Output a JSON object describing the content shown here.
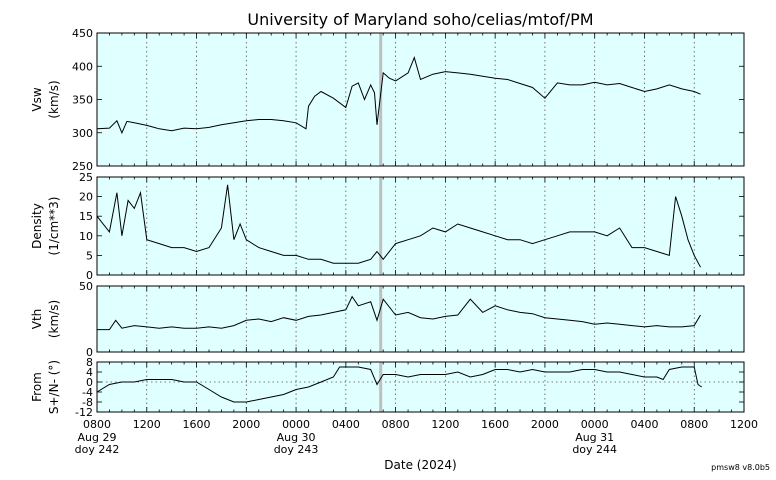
{
  "chart_data": {
    "type": "line",
    "title": "University of Maryland  soho/celias/mtof/PM",
    "xlabel": "Date (2024)",
    "version": "pmsw8 v8.0b5",
    "background_color": "#e0ffff",
    "line_color": "#000000",
    "marker_color": "#bfbfbf",
    "grid": true,
    "x_range_hours": [
      0,
      52
    ],
    "x_ticks": [
      {
        "h": 0,
        "label": "0800"
      },
      {
        "h": 4,
        "label": "1200"
      },
      {
        "h": 8,
        "label": "1600"
      },
      {
        "h": 12,
        "label": "2000"
      },
      {
        "h": 16,
        "label": "0000"
      },
      {
        "h": 20,
        "label": "0400"
      },
      {
        "h": 24,
        "label": "0800"
      },
      {
        "h": 28,
        "label": "1200"
      },
      {
        "h": 32,
        "label": "1600"
      },
      {
        "h": 36,
        "label": "2000"
      },
      {
        "h": 40,
        "label": "0000"
      },
      {
        "h": 44,
        "label": "0400"
      },
      {
        "h": 48,
        "label": "0800"
      },
      {
        "h": 52,
        "label": "1200"
      }
    ],
    "day_labels": [
      {
        "h": 0,
        "date": "Aug 29",
        "doy": "doy 242"
      },
      {
        "h": 16,
        "date": "Aug 30",
        "doy": "doy 243"
      },
      {
        "h": 40,
        "date": "Aug 31",
        "doy": "doy 244"
      }
    ],
    "marker_hour": 22.8,
    "panels": [
      {
        "ylabel_line1": "Vsw",
        "ylabel_line2": "(km/s)",
        "ylim": [
          250,
          450
        ],
        "yticks": [
          250,
          300,
          350,
          400,
          450
        ],
        "x": [
          0,
          1,
          1.6,
          2,
          2.4,
          3,
          4,
          5,
          6,
          7,
          8,
          9,
          10,
          11,
          12,
          13,
          14,
          15,
          16,
          16.8,
          17,
          17.5,
          18,
          19,
          20,
          20.5,
          21,
          21.5,
          22,
          22.3,
          22.5,
          23,
          23.5,
          24,
          25,
          25.5,
          26,
          27,
          28,
          29,
          30,
          31,
          32,
          33,
          34,
          35,
          36,
          37,
          38,
          39,
          40,
          41,
          42,
          43,
          44,
          45,
          46,
          47,
          48,
          48.5
        ],
        "y": [
          306,
          307,
          318,
          300,
          317,
          315,
          311,
          306,
          303,
          307,
          306,
          308,
          312,
          315,
          318,
          320,
          320,
          318,
          315,
          306,
          340,
          355,
          362,
          352,
          338,
          370,
          375,
          350,
          372,
          360,
          312,
          390,
          382,
          378,
          390,
          413,
          380,
          388,
          392,
          390,
          388,
          385,
          382,
          380,
          374,
          368,
          352,
          375,
          372,
          372,
          376,
          372,
          374,
          368,
          362,
          366,
          372,
          366,
          362,
          358
        ]
      },
      {
        "ylabel_line1": "Density",
        "ylabel_line2": "(1/cm**3)",
        "ylim": [
          0,
          25
        ],
        "yticks": [
          0,
          5,
          10,
          15,
          20,
          25
        ],
        "x": [
          0,
          1,
          1.6,
          2,
          2.5,
          3,
          3.5,
          4,
          5,
          6,
          7,
          8,
          9,
          10,
          10.5,
          11,
          11.5,
          12,
          13,
          14,
          15,
          16,
          17,
          18,
          19,
          20,
          21,
          22,
          22.5,
          23,
          24,
          25,
          26,
          27,
          28,
          29,
          30,
          31,
          32,
          33,
          34,
          35,
          36,
          37,
          38,
          39,
          40,
          41,
          42,
          43,
          44,
          45,
          46,
          46.5,
          47,
          47.5,
          48,
          48.5
        ],
        "y": [
          15,
          11,
          21,
          10,
          19,
          17,
          21,
          9,
          8,
          7,
          7,
          6,
          7,
          12,
          23,
          9,
          13,
          9,
          7,
          6,
          5,
          5,
          4,
          4,
          3,
          3,
          3,
          4,
          6,
          4,
          8,
          9,
          10,
          12,
          11,
          13,
          12,
          11,
          10,
          9,
          9,
          8,
          9,
          10,
          11,
          11,
          11,
          10,
          12,
          7,
          7,
          6,
          5,
          20,
          15,
          9,
          5,
          2
        ]
      },
      {
        "ylabel_line1": "Vth",
        "ylabel_line2": "(km/s)",
        "ylim": [
          0,
          50
        ],
        "yticks": [
          0,
          50
        ],
        "x": [
          0,
          1,
          1.5,
          2,
          3,
          4,
          5,
          6,
          7,
          8,
          9,
          10,
          11,
          12,
          13,
          14,
          15,
          16,
          17,
          18,
          19,
          20,
          20.5,
          21,
          22,
          22.5,
          23,
          24,
          25,
          26,
          27,
          28,
          29,
          30,
          31,
          32,
          33,
          34,
          35,
          36,
          37,
          38,
          39,
          40,
          41,
          42,
          43,
          44,
          45,
          46,
          47,
          48,
          48.5
        ],
        "y": [
          17,
          17,
          24,
          18,
          20,
          19,
          18,
          19,
          18,
          18,
          19,
          18,
          20,
          24,
          25,
          23,
          26,
          24,
          27,
          28,
          30,
          32,
          42,
          35,
          38,
          24,
          40,
          28,
          30,
          26,
          25,
          27,
          28,
          40,
          30,
          35,
          32,
          30,
          29,
          26,
          25,
          24,
          23,
          21,
          22,
          21,
          20,
          19,
          20,
          19,
          19,
          20,
          28
        ]
      },
      {
        "ylabel_line1": "From",
        "ylabel_line2": "S+/N- (°)",
        "ylim": [
          -12,
          8
        ],
        "yticks": [
          -12,
          -8,
          -4,
          0,
          4,
          8
        ],
        "dotted_zero": true,
        "x": [
          0,
          1,
          2,
          3,
          4,
          5,
          6,
          7,
          8,
          9,
          10,
          11,
          12,
          13,
          14,
          15,
          16,
          17,
          18,
          19,
          19.5,
          20,
          21,
          22,
          22.5,
          23,
          24,
          25,
          26,
          27,
          28,
          29,
          30,
          31,
          32,
          33,
          34,
          35,
          36,
          37,
          38,
          39,
          40,
          41,
          42,
          43,
          44,
          45,
          45.5,
          46,
          47,
          48,
          48.3,
          48.6
        ],
        "y": [
          -4,
          -1,
          0,
          0,
          1,
          1,
          1,
          0,
          0,
          -3,
          -6,
          -8,
          -8,
          -7,
          -6,
          -5,
          -3,
          -2,
          0,
          2,
          6,
          6,
          6,
          5,
          -1,
          3,
          3,
          2,
          3,
          3,
          3,
          4,
          2,
          3,
          5,
          5,
          4,
          5,
          4,
          4,
          4,
          5,
          5,
          4,
          4,
          3,
          2,
          2,
          1,
          5,
          6,
          6,
          -1,
          -2
        ]
      }
    ]
  }
}
